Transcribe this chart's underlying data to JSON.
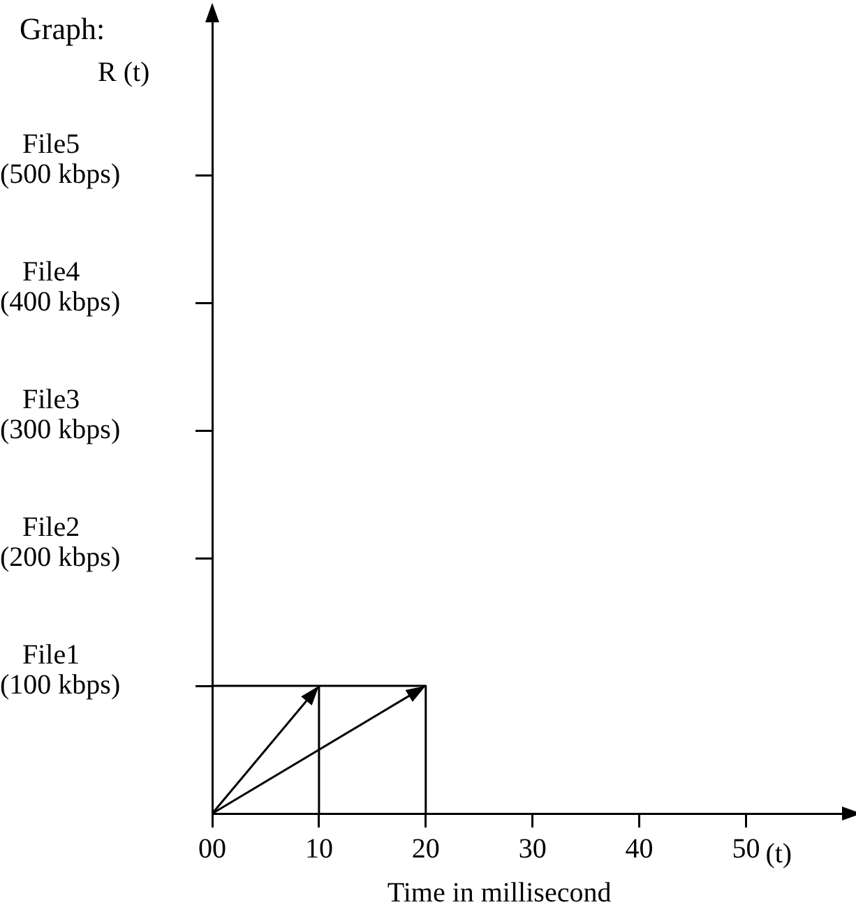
{
  "chart_data": {
    "type": "line",
    "title": "Graph:",
    "ylabel": "R (t)",
    "xlabel": "Time in millisecond",
    "annotations": [
      "(t)",
      "File1",
      "File2",
      "File3",
      "File4",
      "File5"
    ],
    "xlim": [
      0,
      59
    ],
    "ylim": [
      0,
      620
    ],
    "xticks": [
      {
        "value": 0,
        "label": "00"
      },
      10,
      20,
      30,
      40,
      50
    ],
    "yticks": [
      {
        "value": 100,
        "label": "(100 kbps)"
      },
      {
        "value": 200,
        "label": "(200 kbps)"
      },
      {
        "value": 300,
        "label": "(300 kbps)"
      },
      {
        "value": 400,
        "label": "(400 kbps)"
      },
      {
        "value": 500,
        "label": "(500 kbps)"
      }
    ],
    "grid": false,
    "legend": false,
    "marker": "none",
    "line_style": "solid",
    "series": [
      {
        "color": "#000000",
        "x": [
          10,
          10,
          0,
          20,
          20
        ],
        "values": [
          0,
          100,
          100,
          100,
          0
        ]
      }
    ]
  }
}
